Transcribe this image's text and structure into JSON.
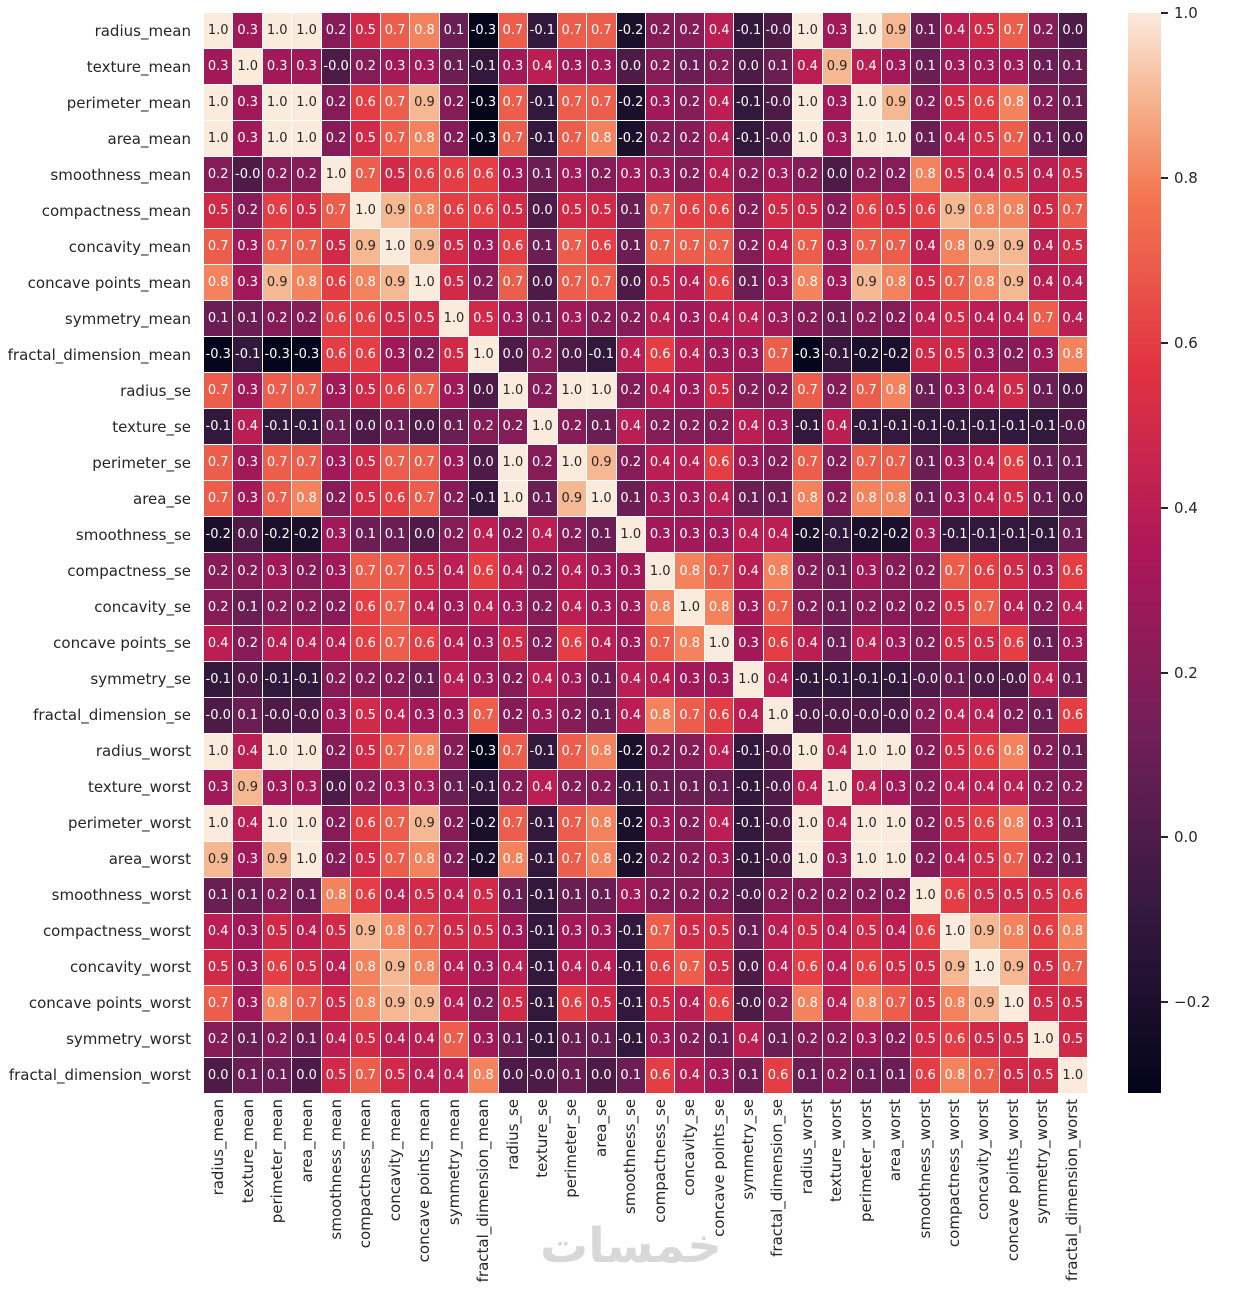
{
  "figure": {
    "watermark": "خمسات"
  },
  "chart_data": {
    "type": "heatmap",
    "title": "",
    "xlabel": "",
    "ylabel": "",
    "colormap": "rocket",
    "vmin": -0.31,
    "vmax": 1.0,
    "grid": false,
    "legend": "colorbar-right",
    "annotation_color_dark": "#262626",
    "annotation_color_light": "#ffffff",
    "cell_border_color": "#ffffff",
    "colormap_stops": [
      {
        "t": 0.0,
        "color": "#03051A"
      },
      {
        "t": 0.17,
        "color": "#35193E"
      },
      {
        "t": 0.33,
        "color": "#701F57"
      },
      {
        "t": 0.5,
        "color": "#AD1759"
      },
      {
        "t": 0.67,
        "color": "#E13342"
      },
      {
        "t": 0.83,
        "color": "#F37651"
      },
      {
        "t": 0.92,
        "color": "#F6B48F"
      },
      {
        "t": 1.0,
        "color": "#FAEBDD"
      }
    ],
    "colorbar": {
      "ticks": [
        "1.0",
        "0.8",
        "0.6",
        "0.4",
        "0.2",
        "0.0",
        "−0.2"
      ],
      "tick_values": [
        1.0,
        0.8,
        0.6,
        0.4,
        0.2,
        0.0,
        -0.2
      ]
    },
    "labels": [
      "radius_mean",
      "texture_mean",
      "perimeter_mean",
      "area_mean",
      "smoothness_mean",
      "compactness_mean",
      "concavity_mean",
      "concave points_mean",
      "symmetry_mean",
      "fractal_dimension_mean",
      "radius_se",
      "texture_se",
      "perimeter_se",
      "area_se",
      "smoothness_se",
      "compactness_se",
      "concavity_se",
      "concave points_se",
      "symmetry_se",
      "fractal_dimension_se",
      "radius_worst",
      "texture_worst",
      "perimeter_worst",
      "area_worst",
      "smoothness_worst",
      "compactness_worst",
      "concavity_worst",
      "concave points_worst",
      "symmetry_worst",
      "fractal_dimension_worst"
    ],
    "matrix": [
      [
        "1.0",
        "0.3",
        "1.0",
        "1.0",
        "0.2",
        "0.5",
        "0.7",
        "0.8",
        "0.1",
        "-0.3",
        "0.7",
        "-0.1",
        "0.7",
        "0.7",
        "-0.2",
        "0.2",
        "0.2",
        "0.4",
        "-0.1",
        "-0.0",
        "1.0",
        "0.3",
        "1.0",
        "0.9",
        "0.1",
        "0.4",
        "0.5",
        "0.7",
        "0.2",
        "0.0"
      ],
      [
        "0.3",
        "1.0",
        "0.3",
        "0.3",
        "-0.0",
        "0.2",
        "0.3",
        "0.3",
        "0.1",
        "-0.1",
        "0.3",
        "0.4",
        "0.3",
        "0.3",
        "0.0",
        "0.2",
        "0.1",
        "0.2",
        "0.0",
        "0.1",
        "0.4",
        "0.9",
        "0.4",
        "0.3",
        "0.1",
        "0.3",
        "0.3",
        "0.3",
        "0.1",
        "0.1"
      ],
      [
        "1.0",
        "0.3",
        "1.0",
        "1.0",
        "0.2",
        "0.6",
        "0.7",
        "0.9",
        "0.2",
        "-0.3",
        "0.7",
        "-0.1",
        "0.7",
        "0.7",
        "-0.2",
        "0.3",
        "0.2",
        "0.4",
        "-0.1",
        "-0.0",
        "1.0",
        "0.3",
        "1.0",
        "0.9",
        "0.2",
        "0.5",
        "0.6",
        "0.8",
        "0.2",
        "0.1"
      ],
      [
        "1.0",
        "0.3",
        "1.0",
        "1.0",
        "0.2",
        "0.5",
        "0.7",
        "0.8",
        "0.2",
        "-0.3",
        "0.7",
        "-0.1",
        "0.7",
        "0.8",
        "-0.2",
        "0.2",
        "0.2",
        "0.4",
        "-0.1",
        "-0.0",
        "1.0",
        "0.3",
        "1.0",
        "1.0",
        "0.1",
        "0.4",
        "0.5",
        "0.7",
        "0.1",
        "0.0"
      ],
      [
        "0.2",
        "-0.0",
        "0.2",
        "0.2",
        "1.0",
        "0.7",
        "0.5",
        "0.6",
        "0.6",
        "0.6",
        "0.3",
        "0.1",
        "0.3",
        "0.2",
        "0.3",
        "0.3",
        "0.2",
        "0.4",
        "0.2",
        "0.3",
        "0.2",
        "0.0",
        "0.2",
        "0.2",
        "0.8",
        "0.5",
        "0.4",
        "0.5",
        "0.4",
        "0.5"
      ],
      [
        "0.5",
        "0.2",
        "0.6",
        "0.5",
        "0.7",
        "1.0",
        "0.9",
        "0.8",
        "0.6",
        "0.6",
        "0.5",
        "0.0",
        "0.5",
        "0.5",
        "0.1",
        "0.7",
        "0.6",
        "0.6",
        "0.2",
        "0.5",
        "0.5",
        "0.2",
        "0.6",
        "0.5",
        "0.6",
        "0.9",
        "0.8",
        "0.8",
        "0.5",
        "0.7"
      ],
      [
        "0.7",
        "0.3",
        "0.7",
        "0.7",
        "0.5",
        "0.9",
        "1.0",
        "0.9",
        "0.5",
        "0.3",
        "0.6",
        "0.1",
        "0.7",
        "0.6",
        "0.1",
        "0.7",
        "0.7",
        "0.7",
        "0.2",
        "0.4",
        "0.7",
        "0.3",
        "0.7",
        "0.7",
        "0.4",
        "0.8",
        "0.9",
        "0.9",
        "0.4",
        "0.5"
      ],
      [
        "0.8",
        "0.3",
        "0.9",
        "0.8",
        "0.6",
        "0.8",
        "0.9",
        "1.0",
        "0.5",
        "0.2",
        "0.7",
        "0.0",
        "0.7",
        "0.7",
        "0.0",
        "0.5",
        "0.4",
        "0.6",
        "0.1",
        "0.3",
        "0.8",
        "0.3",
        "0.9",
        "0.8",
        "0.5",
        "0.7",
        "0.8",
        "0.9",
        "0.4",
        "0.4"
      ],
      [
        "0.1",
        "0.1",
        "0.2",
        "0.2",
        "0.6",
        "0.6",
        "0.5",
        "0.5",
        "1.0",
        "0.5",
        "0.3",
        "0.1",
        "0.3",
        "0.2",
        "0.2",
        "0.4",
        "0.3",
        "0.4",
        "0.4",
        "0.3",
        "0.2",
        "0.1",
        "0.2",
        "0.2",
        "0.4",
        "0.5",
        "0.4",
        "0.4",
        "0.7",
        "0.4"
      ],
      [
        "-0.3",
        "-0.1",
        "-0.3",
        "-0.3",
        "0.6",
        "0.6",
        "0.3",
        "0.2",
        "0.5",
        "1.0",
        "0.0",
        "0.2",
        "0.0",
        "-0.1",
        "0.4",
        "0.6",
        "0.4",
        "0.3",
        "0.3",
        "0.7",
        "-0.3",
        "-0.1",
        "-0.2",
        "-0.2",
        "0.5",
        "0.5",
        "0.3",
        "0.2",
        "0.3",
        "0.8"
      ],
      [
        "0.7",
        "0.3",
        "0.7",
        "0.7",
        "0.3",
        "0.5",
        "0.6",
        "0.7",
        "0.3",
        "0.0",
        "1.0",
        "0.2",
        "1.0",
        "1.0",
        "0.2",
        "0.4",
        "0.3",
        "0.5",
        "0.2",
        "0.2",
        "0.7",
        "0.2",
        "0.7",
        "0.8",
        "0.1",
        "0.3",
        "0.4",
        "0.5",
        "0.1",
        "0.0"
      ],
      [
        "-0.1",
        "0.4",
        "-0.1",
        "-0.1",
        "0.1",
        "0.0",
        "0.1",
        "0.0",
        "0.1",
        "0.2",
        "0.2",
        "1.0",
        "0.2",
        "0.1",
        "0.4",
        "0.2",
        "0.2",
        "0.2",
        "0.4",
        "0.3",
        "-0.1",
        "0.4",
        "-0.1",
        "-0.1",
        "-0.1",
        "-0.1",
        "-0.1",
        "-0.1",
        "-0.1",
        "-0.0"
      ],
      [
        "0.7",
        "0.3",
        "0.7",
        "0.7",
        "0.3",
        "0.5",
        "0.7",
        "0.7",
        "0.3",
        "0.0",
        "1.0",
        "0.2",
        "1.0",
        "0.9",
        "0.2",
        "0.4",
        "0.4",
        "0.6",
        "0.3",
        "0.2",
        "0.7",
        "0.2",
        "0.7",
        "0.7",
        "0.1",
        "0.3",
        "0.4",
        "0.6",
        "0.1",
        "0.1"
      ],
      [
        "0.7",
        "0.3",
        "0.7",
        "0.8",
        "0.2",
        "0.5",
        "0.6",
        "0.7",
        "0.2",
        "-0.1",
        "1.0",
        "0.1",
        "0.9",
        "1.0",
        "0.1",
        "0.3",
        "0.3",
        "0.4",
        "0.1",
        "0.1",
        "0.8",
        "0.2",
        "0.8",
        "0.8",
        "0.1",
        "0.3",
        "0.4",
        "0.5",
        "0.1",
        "0.0"
      ],
      [
        "-0.2",
        "0.0",
        "-0.2",
        "-0.2",
        "0.3",
        "0.1",
        "0.1",
        "0.0",
        "0.2",
        "0.4",
        "0.2",
        "0.4",
        "0.2",
        "0.1",
        "1.0",
        "0.3",
        "0.3",
        "0.3",
        "0.4",
        "0.4",
        "-0.2",
        "-0.1",
        "-0.2",
        "-0.2",
        "0.3",
        "-0.1",
        "-0.1",
        "-0.1",
        "-0.1",
        "0.1"
      ],
      [
        "0.2",
        "0.2",
        "0.3",
        "0.2",
        "0.3",
        "0.7",
        "0.7",
        "0.5",
        "0.4",
        "0.6",
        "0.4",
        "0.2",
        "0.4",
        "0.3",
        "0.3",
        "1.0",
        "0.8",
        "0.7",
        "0.4",
        "0.8",
        "0.2",
        "0.1",
        "0.3",
        "0.2",
        "0.2",
        "0.7",
        "0.6",
        "0.5",
        "0.3",
        "0.6"
      ],
      [
        "0.2",
        "0.1",
        "0.2",
        "0.2",
        "0.2",
        "0.6",
        "0.7",
        "0.4",
        "0.3",
        "0.4",
        "0.3",
        "0.2",
        "0.4",
        "0.3",
        "0.3",
        "0.8",
        "1.0",
        "0.8",
        "0.3",
        "0.7",
        "0.2",
        "0.1",
        "0.2",
        "0.2",
        "0.2",
        "0.5",
        "0.7",
        "0.4",
        "0.2",
        "0.4"
      ],
      [
        "0.4",
        "0.2",
        "0.4",
        "0.4",
        "0.4",
        "0.6",
        "0.7",
        "0.6",
        "0.4",
        "0.3",
        "0.5",
        "0.2",
        "0.6",
        "0.4",
        "0.3",
        "0.7",
        "0.8",
        "1.0",
        "0.3",
        "0.6",
        "0.4",
        "0.1",
        "0.4",
        "0.3",
        "0.2",
        "0.5",
        "0.5",
        "0.6",
        "0.1",
        "0.3"
      ],
      [
        "-0.1",
        "0.0",
        "-0.1",
        "-0.1",
        "0.2",
        "0.2",
        "0.2",
        "0.1",
        "0.4",
        "0.3",
        "0.2",
        "0.4",
        "0.3",
        "0.1",
        "0.4",
        "0.4",
        "0.3",
        "0.3",
        "1.0",
        "0.4",
        "-0.1",
        "-0.1",
        "-0.1",
        "-0.1",
        "-0.0",
        "0.1",
        "0.0",
        "-0.0",
        "0.4",
        "0.1"
      ],
      [
        "-0.0",
        "0.1",
        "-0.0",
        "-0.0",
        "0.3",
        "0.5",
        "0.4",
        "0.3",
        "0.3",
        "0.7",
        "0.2",
        "0.3",
        "0.2",
        "0.1",
        "0.4",
        "0.8",
        "0.7",
        "0.6",
        "0.4",
        "1.0",
        "-0.0",
        "-0.0",
        "-0.0",
        "-0.0",
        "0.2",
        "0.4",
        "0.4",
        "0.2",
        "0.1",
        "0.6"
      ],
      [
        "1.0",
        "0.4",
        "1.0",
        "1.0",
        "0.2",
        "0.5",
        "0.7",
        "0.8",
        "0.2",
        "-0.3",
        "0.7",
        "-0.1",
        "0.7",
        "0.8",
        "-0.2",
        "0.2",
        "0.2",
        "0.4",
        "-0.1",
        "-0.0",
        "1.0",
        "0.4",
        "1.0",
        "1.0",
        "0.2",
        "0.5",
        "0.6",
        "0.8",
        "0.2",
        "0.1"
      ],
      [
        "0.3",
        "0.9",
        "0.3",
        "0.3",
        "0.0",
        "0.2",
        "0.3",
        "0.3",
        "0.1",
        "-0.1",
        "0.2",
        "0.4",
        "0.2",
        "0.2",
        "-0.1",
        "0.1",
        "0.1",
        "0.1",
        "-0.1",
        "-0.0",
        "0.4",
        "1.0",
        "0.4",
        "0.3",
        "0.2",
        "0.4",
        "0.4",
        "0.4",
        "0.2",
        "0.2"
      ],
      [
        "1.0",
        "0.4",
        "1.0",
        "1.0",
        "0.2",
        "0.6",
        "0.7",
        "0.9",
        "0.2",
        "-0.2",
        "0.7",
        "-0.1",
        "0.7",
        "0.8",
        "-0.2",
        "0.3",
        "0.2",
        "0.4",
        "-0.1",
        "-0.0",
        "1.0",
        "0.4",
        "1.0",
        "1.0",
        "0.2",
        "0.5",
        "0.6",
        "0.8",
        "0.3",
        "0.1"
      ],
      [
        "0.9",
        "0.3",
        "0.9",
        "1.0",
        "0.2",
        "0.5",
        "0.7",
        "0.8",
        "0.2",
        "-0.2",
        "0.8",
        "-0.1",
        "0.7",
        "0.8",
        "-0.2",
        "0.2",
        "0.2",
        "0.3",
        "-0.1",
        "-0.0",
        "1.0",
        "0.3",
        "1.0",
        "1.0",
        "0.2",
        "0.4",
        "0.5",
        "0.7",
        "0.2",
        "0.1"
      ],
      [
        "0.1",
        "0.1",
        "0.2",
        "0.1",
        "0.8",
        "0.6",
        "0.4",
        "0.5",
        "0.4",
        "0.5",
        "0.1",
        "-0.1",
        "0.1",
        "0.1",
        "0.3",
        "0.2",
        "0.2",
        "0.2",
        "-0.0",
        "0.2",
        "0.2",
        "0.2",
        "0.2",
        "0.2",
        "1.0",
        "0.6",
        "0.5",
        "0.5",
        "0.5",
        "0.6"
      ],
      [
        "0.4",
        "0.3",
        "0.5",
        "0.4",
        "0.5",
        "0.9",
        "0.8",
        "0.7",
        "0.5",
        "0.5",
        "0.3",
        "-0.1",
        "0.3",
        "0.3",
        "-0.1",
        "0.7",
        "0.5",
        "0.5",
        "0.1",
        "0.4",
        "0.5",
        "0.4",
        "0.5",
        "0.4",
        "0.6",
        "1.0",
        "0.9",
        "0.8",
        "0.6",
        "0.8"
      ],
      [
        "0.5",
        "0.3",
        "0.6",
        "0.5",
        "0.4",
        "0.8",
        "0.9",
        "0.8",
        "0.4",
        "0.3",
        "0.4",
        "-0.1",
        "0.4",
        "0.4",
        "-0.1",
        "0.6",
        "0.7",
        "0.5",
        "0.0",
        "0.4",
        "0.6",
        "0.4",
        "0.6",
        "0.5",
        "0.5",
        "0.9",
        "1.0",
        "0.9",
        "0.5",
        "0.7"
      ],
      [
        "0.7",
        "0.3",
        "0.8",
        "0.7",
        "0.5",
        "0.8",
        "0.9",
        "0.9",
        "0.4",
        "0.2",
        "0.5",
        "-0.1",
        "0.6",
        "0.5",
        "-0.1",
        "0.5",
        "0.4",
        "0.6",
        "-0.0",
        "0.2",
        "0.8",
        "0.4",
        "0.8",
        "0.7",
        "0.5",
        "0.8",
        "0.9",
        "1.0",
        "0.5",
        "0.5"
      ],
      [
        "0.2",
        "0.1",
        "0.2",
        "0.1",
        "0.4",
        "0.5",
        "0.4",
        "0.4",
        "0.7",
        "0.3",
        "0.1",
        "-0.1",
        "0.1",
        "0.1",
        "-0.1",
        "0.3",
        "0.2",
        "0.1",
        "0.4",
        "0.1",
        "0.2",
        "0.2",
        "0.3",
        "0.2",
        "0.5",
        "0.6",
        "0.5",
        "0.5",
        "1.0",
        "0.5"
      ],
      [
        "0.0",
        "0.1",
        "0.1",
        "0.0",
        "0.5",
        "0.7",
        "0.5",
        "0.4",
        "0.4",
        "0.8",
        "0.0",
        "-0.0",
        "0.1",
        "0.0",
        "0.1",
        "0.6",
        "0.4",
        "0.3",
        "0.1",
        "0.6",
        "0.1",
        "0.2",
        "0.1",
        "0.1",
        "0.6",
        "0.8",
        "0.7",
        "0.5",
        "0.5",
        "1.0"
      ]
    ]
  }
}
